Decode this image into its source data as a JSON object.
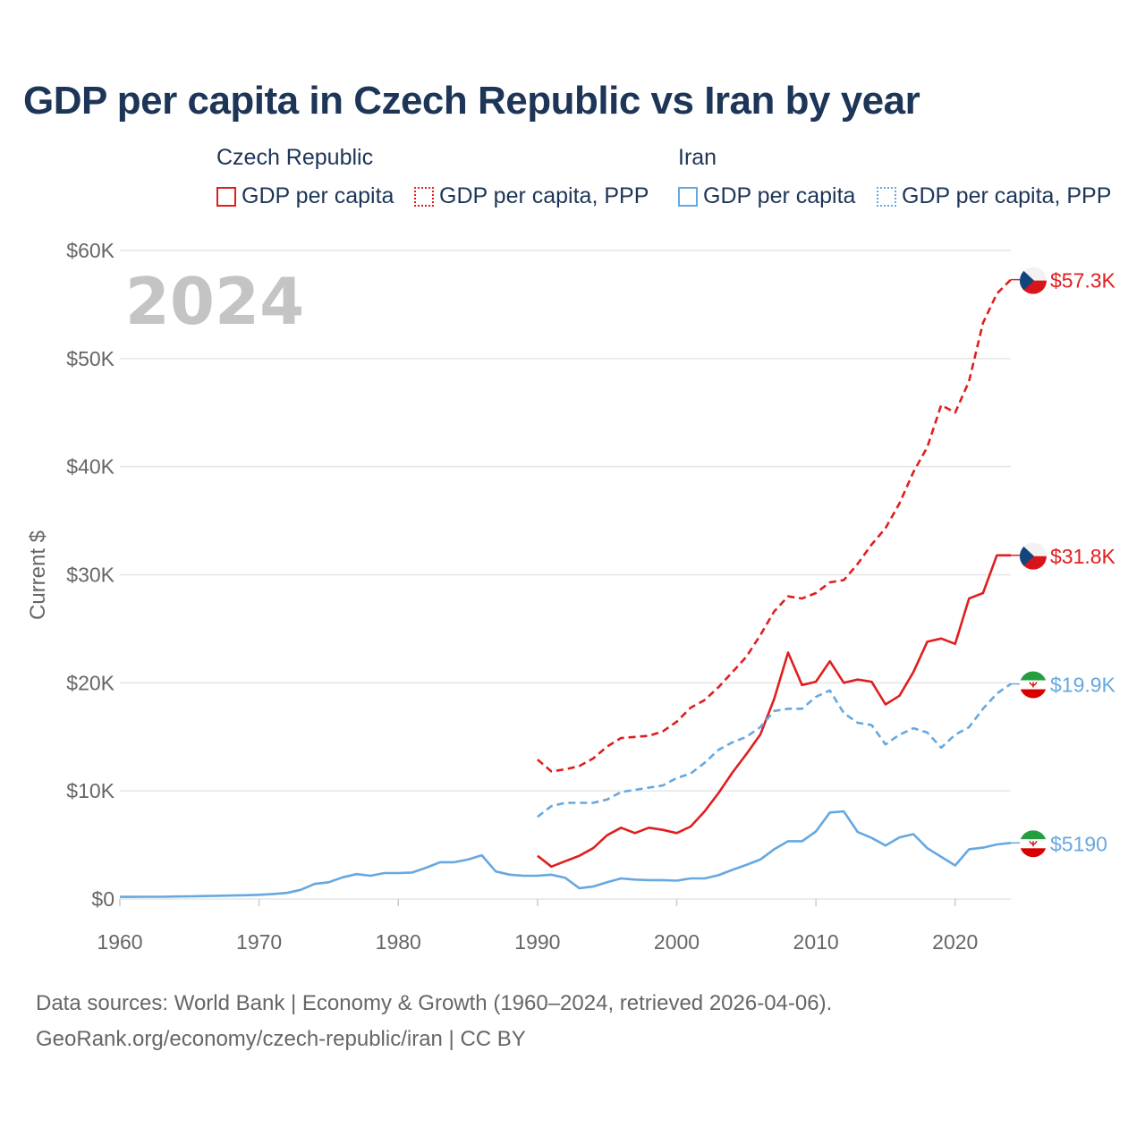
{
  "title": "GDP per capita in Czech Republic vs Iran by year",
  "legend": {
    "groups": [
      {
        "country": "Czech Republic",
        "color": "#e01e1e",
        "items": [
          {
            "label": "GDP per capita",
            "style": "solid"
          },
          {
            "label": "GDP per capita, PPP",
            "style": "dotted"
          }
        ]
      },
      {
        "country": "Iran",
        "color": "#66a8e0",
        "items": [
          {
            "label": "GDP per capita",
            "style": "solid"
          },
          {
            "label": "GDP per capita, PPP",
            "style": "dotted"
          }
        ]
      }
    ]
  },
  "year_overlay": "2024",
  "sources": {
    "line1": "Data sources: World Bank | Economy & Growth (1960–2024, retrieved 2026-04-06).",
    "line2": "GeoRank.org/economy/czech-republic/iran | CC BY"
  },
  "chart_data": {
    "type": "line",
    "title": "GDP per capita in Czech Republic vs Iran by year",
    "xlabel": "",
    "ylabel": "Current $",
    "xlim": [
      1960,
      2024
    ],
    "ylim": [
      0,
      60000
    ],
    "x_ticks": [
      1960,
      1970,
      1980,
      1990,
      2000,
      2010,
      2020
    ],
    "x_tick_labels": [
      "1960",
      "1970",
      "1980",
      "1990",
      "2000",
      "2010",
      "2020"
    ],
    "y_ticks": [
      0,
      10000,
      20000,
      30000,
      40000,
      50000,
      60000
    ],
    "y_tick_labels": [
      "$0",
      "$10K",
      "$20K",
      "$30K",
      "$40K",
      "$50K",
      "$60K"
    ],
    "grid": true,
    "series": [
      {
        "name": "Czech Republic GDP per capita, PPP",
        "country": "Czech Republic",
        "color": "#e01e1e",
        "dash": "dashed",
        "end_label": "$57.3K",
        "points": [
          [
            1990,
            12900
          ],
          [
            1991,
            11800
          ],
          [
            1992,
            12000
          ],
          [
            1993,
            12300
          ],
          [
            1994,
            13000
          ],
          [
            1995,
            14100
          ],
          [
            1996,
            14900
          ],
          [
            1997,
            15000
          ],
          [
            1998,
            15100
          ],
          [
            1999,
            15500
          ],
          [
            2000,
            16400
          ],
          [
            2001,
            17700
          ],
          [
            2002,
            18400
          ],
          [
            2003,
            19600
          ],
          [
            2004,
            21000
          ],
          [
            2005,
            22400
          ],
          [
            2006,
            24400
          ],
          [
            2007,
            26600
          ],
          [
            2008,
            28000
          ],
          [
            2009,
            27800
          ],
          [
            2010,
            28300
          ],
          [
            2011,
            29300
          ],
          [
            2012,
            29500
          ],
          [
            2013,
            31000
          ],
          [
            2014,
            32800
          ],
          [
            2015,
            34300
          ],
          [
            2016,
            36600
          ],
          [
            2017,
            39500
          ],
          [
            2018,
            41800
          ],
          [
            2019,
            45700
          ],
          [
            2020,
            45000
          ],
          [
            2021,
            47900
          ],
          [
            2022,
            53300
          ],
          [
            2023,
            56000
          ],
          [
            2024,
            57300
          ]
        ]
      },
      {
        "name": "Czech Republic GDP per capita",
        "country": "Czech Republic",
        "color": "#e01e1e",
        "dash": "solid",
        "end_label": "$31.8K",
        "points": [
          [
            1990,
            4000
          ],
          [
            1991,
            3000
          ],
          [
            1992,
            3500
          ],
          [
            1993,
            4000
          ],
          [
            1994,
            4700
          ],
          [
            1995,
            5900
          ],
          [
            1996,
            6600
          ],
          [
            1997,
            6100
          ],
          [
            1998,
            6600
          ],
          [
            1999,
            6400
          ],
          [
            2000,
            6100
          ],
          [
            2001,
            6700
          ],
          [
            2002,
            8100
          ],
          [
            2003,
            9800
          ],
          [
            2004,
            11700
          ],
          [
            2005,
            13400
          ],
          [
            2006,
            15200
          ],
          [
            2007,
            18500
          ],
          [
            2008,
            22800
          ],
          [
            2009,
            19800
          ],
          [
            2010,
            20100
          ],
          [
            2011,
            22000
          ],
          [
            2012,
            20000
          ],
          [
            2013,
            20300
          ],
          [
            2014,
            20100
          ],
          [
            2015,
            18000
          ],
          [
            2016,
            18800
          ],
          [
            2017,
            21000
          ],
          [
            2018,
            23800
          ],
          [
            2019,
            24100
          ],
          [
            2020,
            23600
          ],
          [
            2021,
            27800
          ],
          [
            2022,
            28300
          ],
          [
            2023,
            31800
          ],
          [
            2024,
            31800
          ]
        ]
      },
      {
        "name": "Iran GDP per capita, PPP",
        "country": "Iran",
        "color": "#66a8e0",
        "dash": "dashed",
        "end_label": "$19.9K",
        "points": [
          [
            1990,
            7600
          ],
          [
            1991,
            8600
          ],
          [
            1992,
            8900
          ],
          [
            1993,
            8900
          ],
          [
            1994,
            8900
          ],
          [
            1995,
            9200
          ],
          [
            1996,
            9900
          ],
          [
            1997,
            10100
          ],
          [
            1998,
            10300
          ],
          [
            1999,
            10500
          ],
          [
            2000,
            11200
          ],
          [
            2001,
            11600
          ],
          [
            2002,
            12600
          ],
          [
            2003,
            13800
          ],
          [
            2004,
            14500
          ],
          [
            2005,
            15000
          ],
          [
            2006,
            15900
          ],
          [
            2007,
            17400
          ],
          [
            2008,
            17600
          ],
          [
            2009,
            17600
          ],
          [
            2010,
            18700
          ],
          [
            2011,
            19300
          ],
          [
            2012,
            17200
          ],
          [
            2013,
            16300
          ],
          [
            2014,
            16100
          ],
          [
            2015,
            14300
          ],
          [
            2016,
            15200
          ],
          [
            2017,
            15800
          ],
          [
            2018,
            15400
          ],
          [
            2019,
            14000
          ],
          [
            2020,
            15200
          ],
          [
            2021,
            15900
          ],
          [
            2022,
            17600
          ],
          [
            2023,
            19000
          ],
          [
            2024,
            19900
          ]
        ]
      },
      {
        "name": "Iran GDP per capita",
        "country": "Iran",
        "color": "#66a8e0",
        "dash": "solid",
        "end_label": "$5190",
        "points": [
          [
            1960,
            200
          ],
          [
            1961,
            200
          ],
          [
            1962,
            210
          ],
          [
            1963,
            210
          ],
          [
            1964,
            230
          ],
          [
            1965,
            250
          ],
          [
            1966,
            270
          ],
          [
            1967,
            300
          ],
          [
            1968,
            320
          ],
          [
            1969,
            350
          ],
          [
            1970,
            390
          ],
          [
            1971,
            460
          ],
          [
            1972,
            560
          ],
          [
            1973,
            850
          ],
          [
            1974,
            1400
          ],
          [
            1975,
            1550
          ],
          [
            1976,
            2000
          ],
          [
            1977,
            2300
          ],
          [
            1978,
            2150
          ],
          [
            1979,
            2400
          ],
          [
            1980,
            2400
          ],
          [
            1981,
            2450
          ],
          [
            1982,
            2900
          ],
          [
            1983,
            3400
          ],
          [
            1984,
            3400
          ],
          [
            1985,
            3650
          ],
          [
            1986,
            4050
          ],
          [
            1987,
            2550
          ],
          [
            1988,
            2250
          ],
          [
            1989,
            2150
          ],
          [
            1990,
            2150
          ],
          [
            1991,
            2250
          ],
          [
            1992,
            1950
          ],
          [
            1993,
            1000
          ],
          [
            1994,
            1150
          ],
          [
            1995,
            1550
          ],
          [
            1996,
            1900
          ],
          [
            1997,
            1800
          ],
          [
            1998,
            1750
          ],
          [
            1999,
            1750
          ],
          [
            2000,
            1700
          ],
          [
            2001,
            1900
          ],
          [
            2002,
            1900
          ],
          [
            2003,
            2200
          ],
          [
            2004,
            2700
          ],
          [
            2005,
            3150
          ],
          [
            2006,
            3650
          ],
          [
            2007,
            4600
          ],
          [
            2008,
            5350
          ],
          [
            2009,
            5350
          ],
          [
            2010,
            6250
          ],
          [
            2011,
            8000
          ],
          [
            2012,
            8100
          ],
          [
            2013,
            6200
          ],
          [
            2014,
            5650
          ],
          [
            2015,
            4950
          ],
          [
            2016,
            5700
          ],
          [
            2017,
            6000
          ],
          [
            2018,
            4700
          ],
          [
            2019,
            3900
          ],
          [
            2020,
            3100
          ],
          [
            2021,
            4600
          ],
          [
            2022,
            4750
          ],
          [
            2023,
            5050
          ],
          [
            2024,
            5190
          ]
        ]
      }
    ]
  }
}
